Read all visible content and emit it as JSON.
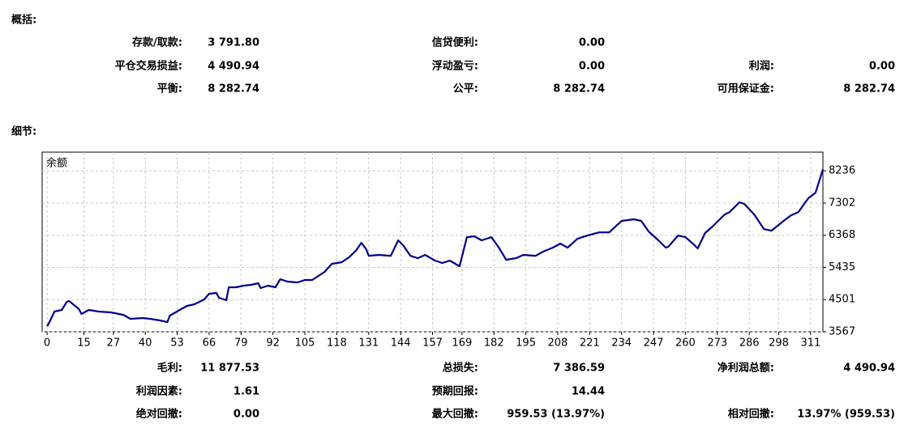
{
  "summary_heading": "概括:",
  "summary": [
    [
      {
        "label": "存款/取款:",
        "value": "3 791.80"
      },
      {
        "label": "信贷便利:",
        "value": "0.00"
      }
    ],
    [
      {
        "label": "平仓交易损益:",
        "value": "4 490.94"
      },
      {
        "label": "浮动盈亏:",
        "value": "0.00"
      },
      {
        "label": "利润:",
        "value": "0.00"
      }
    ],
    [
      {
        "label": "平衡:",
        "value": "8 282.74"
      },
      {
        "label": "公平:",
        "value": "8 282.74"
      },
      {
        "label": "可用保证金:",
        "value": "8 282.74"
      }
    ]
  ],
  "details_heading": "细节:",
  "chart_data": {
    "type": "line",
    "x": [
      0,
      1,
      3,
      6,
      8,
      9,
      13,
      14,
      17,
      21,
      26,
      31,
      34,
      39,
      42,
      46,
      49,
      50,
      54,
      57,
      60,
      64,
      66,
      69,
      70,
      73,
      74,
      77,
      80,
      83,
      86,
      87,
      90,
      93,
      95,
      98,
      102,
      105,
      108,
      113,
      116,
      120,
      123,
      126,
      128,
      130,
      131,
      135,
      140,
      143,
      145,
      148,
      151,
      154,
      158,
      161,
      164,
      168,
      171,
      174,
      177,
      181,
      184,
      187,
      191,
      194,
      199,
      202,
      206,
      209,
      212,
      216,
      220,
      225,
      229,
      234,
      239,
      242,
      245,
      249,
      252,
      253,
      257,
      260,
      263,
      265,
      268,
      271,
      276,
      278,
      282,
      284,
      288,
      292,
      295,
      300,
      303,
      306,
      310,
      313,
      316
    ],
    "series": [
      {
        "name": "余额",
        "color": "#00008b",
        "values": [
          3730,
          3850,
          4154,
          4200,
          4435,
          4460,
          4225,
          4083,
          4200,
          4154,
          4130,
          4060,
          3943,
          3966,
          3943,
          3896,
          3849,
          4036,
          4200,
          4318,
          4365,
          4506,
          4670,
          4693,
          4553,
          4482,
          4858,
          4858,
          4905,
          4928,
          4975,
          4834,
          4905,
          4858,
          5093,
          5022,
          4999,
          5069,
          5069,
          5304,
          5539,
          5586,
          5727,
          5938,
          6149,
          5961,
          5773,
          5797,
          5773,
          6220,
          6079,
          5773,
          5703,
          5797,
          5633,
          5562,
          5633,
          5468,
          6313,
          6337,
          6220,
          6313,
          6008,
          5656,
          5703,
          5797,
          5773,
          5891,
          6008,
          6126,
          6008,
          6266,
          6360,
          6454,
          6454,
          6783,
          6830,
          6783,
          6478,
          6220,
          6008,
          6032,
          6360,
          6313,
          6126,
          5985,
          6431,
          6619,
          6971,
          7041,
          7323,
          7276,
          6971,
          6548,
          6501,
          6783,
          6947,
          7041,
          7440,
          7604,
          8283
        ]
      }
    ],
    "xlim": [
      -2,
      316
    ],
    "ylim": [
      3567,
      8780
    ],
    "xticks": [
      0,
      15,
      27,
      40,
      53,
      66,
      79,
      92,
      105,
      118,
      131,
      144,
      157,
      169,
      182,
      195,
      208,
      221,
      234,
      247,
      260,
      273,
      286,
      298,
      311
    ],
    "yticks": [
      3567,
      4501,
      5435,
      6368,
      7302,
      8236
    ],
    "grid": true
  },
  "details": [
    [
      {
        "label": "毛利:",
        "value": "11 877.53"
      },
      {
        "label": "总损失:",
        "value": "7 386.59"
      },
      {
        "label": "净利润总额:",
        "value": "4 490.94"
      }
    ],
    [
      {
        "label": "利润因素:",
        "value": "1.61"
      },
      {
        "label": "预期回报:",
        "value": "14.44"
      }
    ],
    [
      {
        "label": "绝对回撤:",
        "value": "0.00"
      },
      {
        "label": "最大回撤:",
        "value": "959.53 (13.97%)"
      },
      {
        "label": "相对回撤:",
        "value": "13.97% (959.53)"
      }
    ]
  ]
}
